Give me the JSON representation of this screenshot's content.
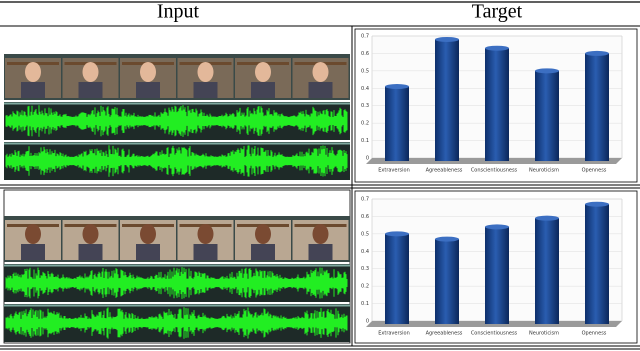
{
  "header": {
    "input": "Input",
    "target": "Target"
  },
  "chart_data": [
    {
      "type": "bar3d",
      "categories": [
        "Extraversion",
        "Agreeableness",
        "Conscientiousness",
        "Neuroticism",
        "Openness"
      ],
      "values": [
        0.41,
        0.68,
        0.63,
        0.5,
        0.6
      ],
      "color": "#1f4e9a",
      "ylim": [
        0,
        0.7
      ],
      "yticks": [
        0,
        0.1,
        0.2,
        0.3,
        0.4,
        0.5,
        0.6,
        0.7
      ],
      "grid": true
    },
    {
      "type": "bar3d",
      "categories": [
        "Extraversion",
        "Agreeableness",
        "Conscientiousness",
        "Neuroticism",
        "Openness"
      ],
      "values": [
        0.5,
        0.47,
        0.54,
        0.59,
        0.67
      ],
      "color": "#1f4e9a",
      "ylim": [
        0,
        0.7
      ],
      "yticks": [
        0,
        0.1,
        0.2,
        0.3,
        0.4,
        0.5,
        0.6,
        0.7
      ],
      "grid": true
    }
  ]
}
